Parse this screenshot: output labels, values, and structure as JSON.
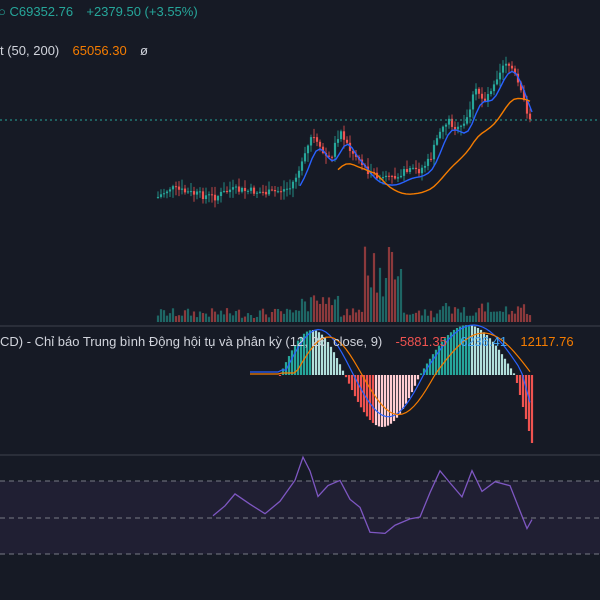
{
  "price_legend": {
    "close_value": "C69352.76",
    "change": "+2379.50 (+3.55%)"
  },
  "ma_legend": {
    "name_fragment": "t (50, 200)",
    "value": "65056.30",
    "eye_glyph": "ø"
  },
  "macd_legend": {
    "name_fragment": "CD) - Chỉ báo Trung bình Động hội tụ và phân kỳ (12, 26, close, 9)",
    "histogram_value": "-5881.35",
    "macd_value": "6236.41",
    "signal_value": "12117.76"
  },
  "colors": {
    "background": "#161a25",
    "up": "#26a69a",
    "down": "#ef5350",
    "ma_fast": "#2962ff",
    "ma_slow": "#f57c00",
    "rsi_line": "#7e57c2",
    "rsi_band": "#2a2440"
  }
}
